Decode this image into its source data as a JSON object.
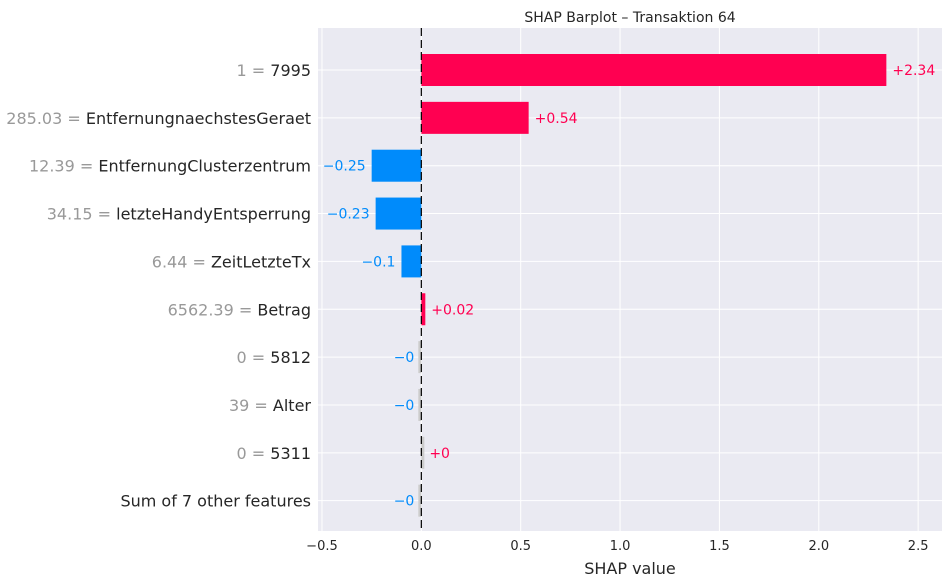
{
  "chart_data": {
    "type": "bar",
    "orientation": "horizontal",
    "title": "SHAP Barplot – Transaktion 64",
    "xlabel": "SHAP value",
    "ylabel": "",
    "xlim": [
      -0.52,
      2.62
    ],
    "xticks": [
      -0.5,
      0.0,
      0.5,
      1.0,
      1.5,
      2.0,
      2.5
    ],
    "xtick_labels": [
      "−0.5",
      "0.0",
      "0.5",
      "1.0",
      "1.5",
      "2.0",
      "2.5"
    ],
    "grid": true,
    "baseline": 0,
    "colors": {
      "positive": "#ff0051",
      "negative": "#008bfb",
      "background": "#eaeaf2",
      "zero_bar": "#cccccc"
    },
    "rows": [
      {
        "feature_value": "1 = ",
        "feature_name": "7995",
        "value": 2.34,
        "label": "+2.34"
      },
      {
        "feature_value": "285.03 = ",
        "feature_name": "EntfernungnaechstesGeraet",
        "value": 0.54,
        "label": "+0.54"
      },
      {
        "feature_value": "12.39 = ",
        "feature_name": "EntfernungClusterzentrum",
        "value": -0.25,
        "label": "−0.25"
      },
      {
        "feature_value": "34.15 = ",
        "feature_name": "letzteHandyEntsperrung",
        "value": -0.23,
        "label": "−0.23"
      },
      {
        "feature_value": "6.44 = ",
        "feature_name": "ZeitLetzteTx",
        "value": -0.1,
        "label": "−0.1"
      },
      {
        "feature_value": "6562.39 = ",
        "feature_name": "Betrag",
        "value": 0.02,
        "label": "+0.02"
      },
      {
        "feature_value": "0 = ",
        "feature_name": "5812",
        "value": -0.004,
        "label": "−0"
      },
      {
        "feature_value": "39 = ",
        "feature_name": "Alter",
        "value": -0.004,
        "label": "−0"
      },
      {
        "feature_value": "0 = ",
        "feature_name": "5311",
        "value": 0.004,
        "label": "+0"
      },
      {
        "feature_value": "",
        "feature_name": "Sum of 7 other features",
        "value": -0.004,
        "label": "−0"
      }
    ]
  }
}
